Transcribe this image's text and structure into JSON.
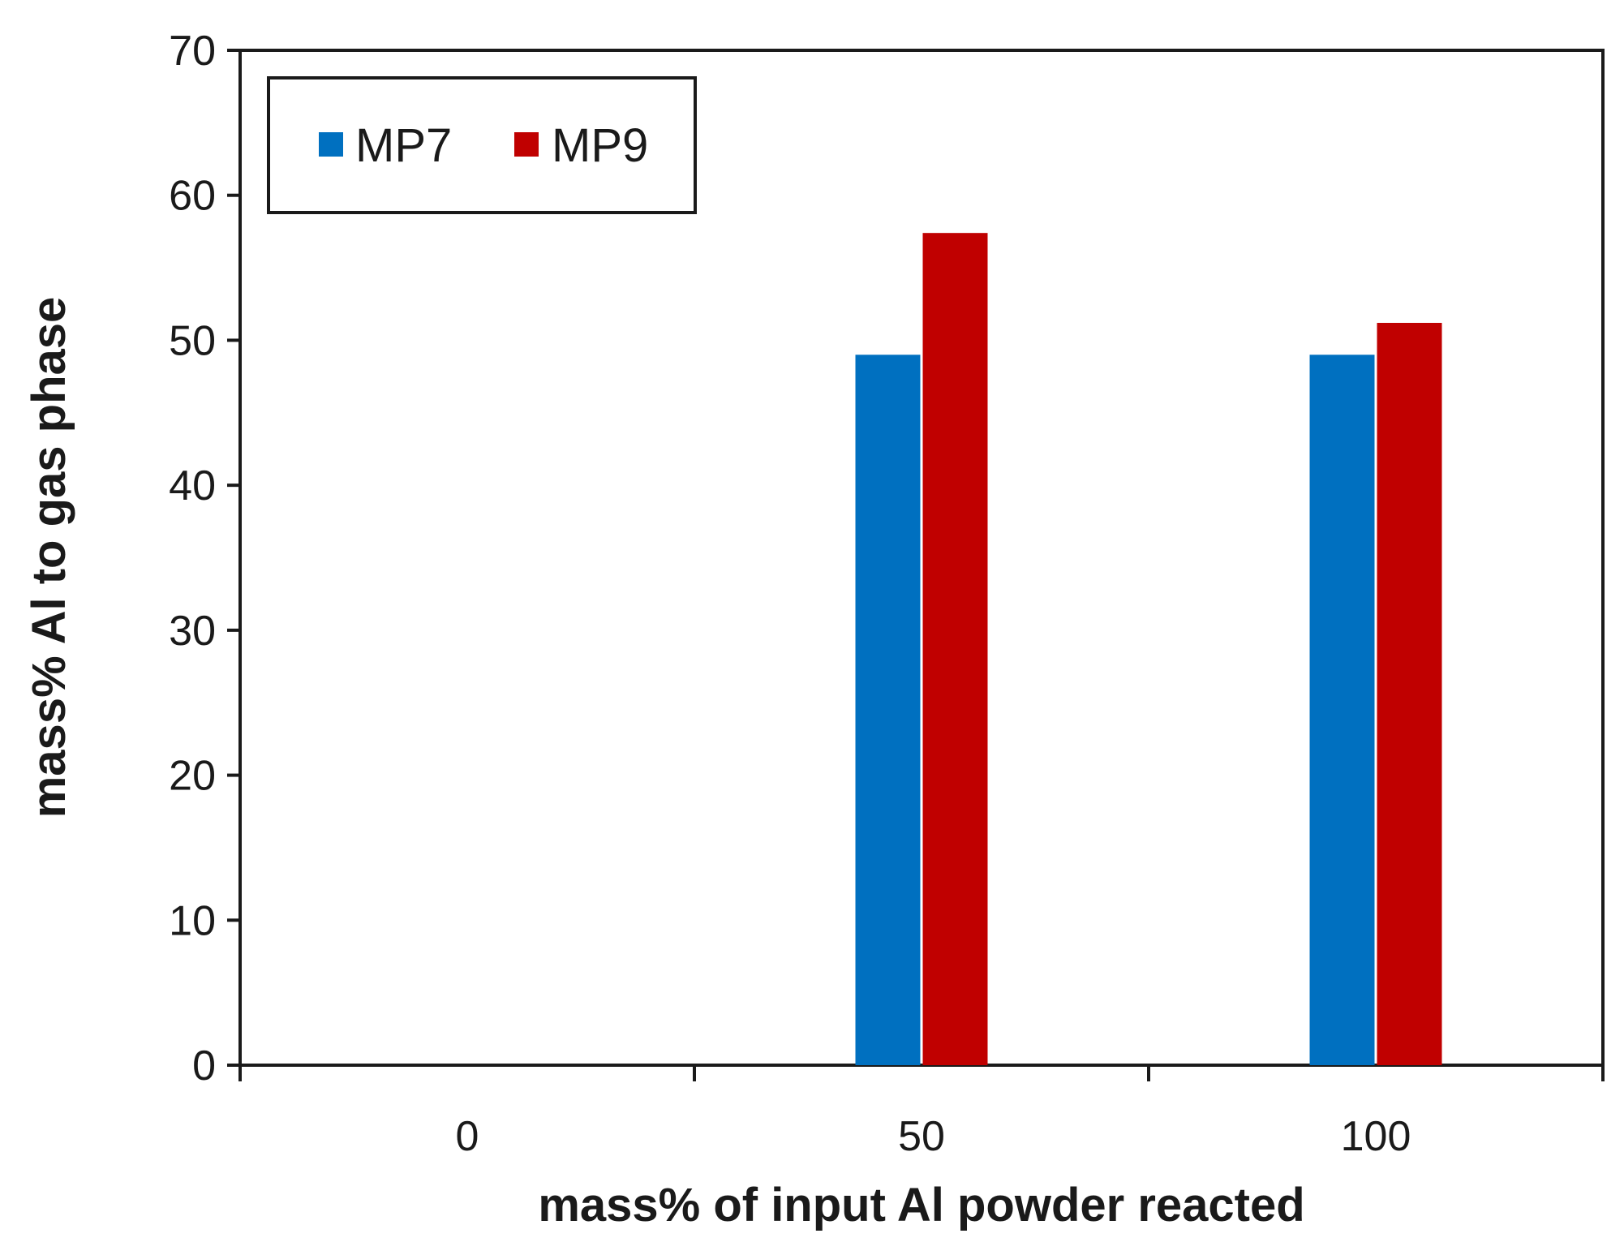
{
  "chart_data": {
    "type": "bar",
    "title": "",
    "xlabel": "mass% of input Al powder reacted",
    "ylabel": "mass% Al to gas phase",
    "categories": [
      "0",
      "50",
      "100"
    ],
    "series": [
      {
        "name": "MP7",
        "values": [
          0,
          49,
          49
        ],
        "color": "#0070C0"
      },
      {
        "name": "MP9",
        "values": [
          0,
          57.4,
          51.2
        ],
        "color": "#C00000"
      }
    ],
    "ylim": [
      0,
      70
    ],
    "yticks": [
      0,
      10,
      20,
      30,
      40,
      50,
      60,
      70
    ],
    "yticks_labels": [
      "0",
      "10",
      "20",
      "30",
      "40",
      "50",
      "60",
      "70"
    ],
    "grid": false,
    "legend_position": "top-left"
  }
}
